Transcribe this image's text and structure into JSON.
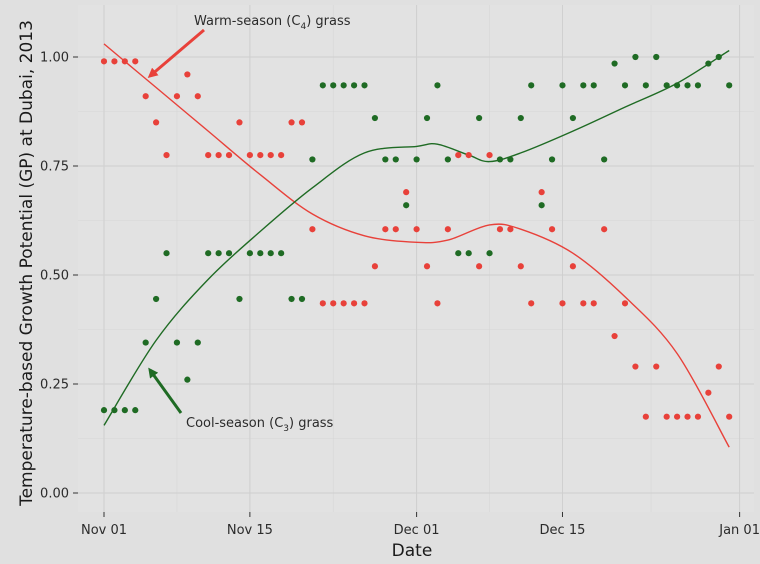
{
  "chart_data": {
    "type": "scatter",
    "xlabel": "Date",
    "ylabel": "Temperature-based Growth Potential (GP) at Dubai, 2013",
    "x_ticks": [
      "Nov 01",
      "Nov 15",
      "Dec 01",
      "Dec 15",
      "Jan 01"
    ],
    "x_tick_days": [
      0,
      14,
      30,
      44,
      61
    ],
    "y_ticks": [
      "0.00",
      "0.25",
      "0.50",
      "0.75",
      "1.00"
    ],
    "y_tick_values": [
      0,
      0.25,
      0.5,
      0.75,
      1.0
    ],
    "xlim_days": [
      -2.5,
      63
    ],
    "ylim": [
      -0.05,
      1.07
    ],
    "grid": true,
    "legend": "none",
    "series": [
      {
        "color": "#e8413a",
        "points": [
          [
            0,
            0.99
          ],
          [
            1,
            0.99
          ],
          [
            2,
            0.99
          ],
          [
            3,
            0.99
          ],
          [
            4,
            0.91
          ],
          [
            5,
            0.85
          ],
          [
            6,
            0.775
          ],
          [
            7,
            0.91
          ],
          [
            8,
            0.96
          ],
          [
            9,
            0.91
          ],
          [
            10,
            0.775
          ],
          [
            11,
            0.775
          ],
          [
            12,
            0.775
          ],
          [
            13,
            0.85
          ],
          [
            14,
            0.775
          ],
          [
            15,
            0.775
          ],
          [
            16,
            0.775
          ],
          [
            17,
            0.775
          ],
          [
            18,
            0.85
          ],
          [
            19,
            0.85
          ],
          [
            20,
            0.605
          ],
          [
            21,
            0.435
          ],
          [
            22,
            0.435
          ],
          [
            23,
            0.435
          ],
          [
            24,
            0.435
          ],
          [
            25,
            0.435
          ],
          [
            26,
            0.52
          ],
          [
            27,
            0.605
          ],
          [
            28,
            0.605
          ],
          [
            29,
            0.69
          ],
          [
            30,
            0.605
          ],
          [
            31,
            0.52
          ],
          [
            32,
            0.435
          ],
          [
            33,
            0.605
          ],
          [
            34,
            0.775
          ],
          [
            35,
            0.775
          ],
          [
            36,
            0.52
          ],
          [
            37,
            0.775
          ],
          [
            38,
            0.605
          ],
          [
            39,
            0.605
          ],
          [
            40,
            0.52
          ],
          [
            41,
            0.435
          ],
          [
            42,
            0.69
          ],
          [
            43,
            0.605
          ],
          [
            44,
            0.435
          ],
          [
            45,
            0.52
          ],
          [
            46,
            0.435
          ],
          [
            47,
            0.435
          ],
          [
            48,
            0.605
          ],
          [
            49,
            0.36
          ],
          [
            50,
            0.435
          ],
          [
            51,
            0.29
          ],
          [
            52,
            0.175
          ],
          [
            53,
            0.29
          ],
          [
            54,
            0.175
          ],
          [
            55,
            0.175
          ],
          [
            56,
            0.175
          ],
          [
            57,
            0.175
          ],
          [
            58,
            0.23
          ],
          [
            59,
            0.29
          ],
          [
            60,
            0.175
          ]
        ],
        "fit": [
          [
            0,
            1.03
          ],
          [
            5,
            0.93
          ],
          [
            10,
            0.83
          ],
          [
            15,
            0.73
          ],
          [
            20,
            0.64
          ],
          [
            25,
            0.59
          ],
          [
            30,
            0.575
          ],
          [
            33,
            0.58
          ],
          [
            37,
            0.615
          ],
          [
            40,
            0.605
          ],
          [
            45,
            0.55
          ],
          [
            50,
            0.45
          ],
          [
            55,
            0.32
          ],
          [
            60,
            0.105
          ]
        ]
      },
      {
        "color": "#1f6b24",
        "points": [
          [
            0,
            0.19
          ],
          [
            1,
            0.19
          ],
          [
            2,
            0.19
          ],
          [
            3,
            0.19
          ],
          [
            4,
            0.345
          ],
          [
            5,
            0.445
          ],
          [
            6,
            0.55
          ],
          [
            7,
            0.345
          ],
          [
            8,
            0.26
          ],
          [
            9,
            0.345
          ],
          [
            10,
            0.55
          ],
          [
            11,
            0.55
          ],
          [
            12,
            0.55
          ],
          [
            13,
            0.445
          ],
          [
            14,
            0.55
          ],
          [
            15,
            0.55
          ],
          [
            16,
            0.55
          ],
          [
            17,
            0.55
          ],
          [
            18,
            0.445
          ],
          [
            19,
            0.445
          ],
          [
            20,
            0.765
          ],
          [
            21,
            0.935
          ],
          [
            22,
            0.935
          ],
          [
            23,
            0.935
          ],
          [
            24,
            0.935
          ],
          [
            25,
            0.935
          ],
          [
            26,
            0.86
          ],
          [
            27,
            0.765
          ],
          [
            28,
            0.765
          ],
          [
            29,
            0.66
          ],
          [
            30,
            0.765
          ],
          [
            31,
            0.86
          ],
          [
            32,
            0.935
          ],
          [
            33,
            0.765
          ],
          [
            34,
            0.55
          ],
          [
            35,
            0.55
          ],
          [
            36,
            0.86
          ],
          [
            37,
            0.55
          ],
          [
            38,
            0.765
          ],
          [
            39,
            0.765
          ],
          [
            40,
            0.86
          ],
          [
            41,
            0.935
          ],
          [
            42,
            0.66
          ],
          [
            43,
            0.765
          ],
          [
            44,
            0.935
          ],
          [
            45,
            0.86
          ],
          [
            46,
            0.935
          ],
          [
            47,
            0.935
          ],
          [
            48,
            0.765
          ],
          [
            49,
            0.985
          ],
          [
            50,
            0.935
          ],
          [
            51,
            1.0
          ],
          [
            52,
            0.935
          ],
          [
            53,
            1.0
          ],
          [
            54,
            0.935
          ],
          [
            55,
            0.935
          ],
          [
            56,
            0.935
          ],
          [
            57,
            0.935
          ],
          [
            58,
            0.985
          ],
          [
            59,
            1.0
          ],
          [
            60,
            0.935
          ]
        ],
        "fit": [
          [
            0,
            0.155
          ],
          [
            5,
            0.35
          ],
          [
            10,
            0.49
          ],
          [
            15,
            0.6
          ],
          [
            20,
            0.7
          ],
          [
            25,
            0.78
          ],
          [
            30,
            0.795
          ],
          [
            32,
            0.8
          ],
          [
            35,
            0.775
          ],
          [
            37,
            0.76
          ],
          [
            40,
            0.78
          ],
          [
            45,
            0.83
          ],
          [
            50,
            0.885
          ],
          [
            55,
            0.94
          ],
          [
            60,
            1.015
          ]
        ]
      }
    ],
    "annotations": [
      {
        "text_main": "Warm-season (C",
        "text_sub": "4",
        "text_tail": ") grass",
        "color": "#e8413a",
        "arrow_to": [
          4,
          0.955
        ]
      },
      {
        "text_main": "Cool-season (C",
        "text_sub": "3",
        "text_tail": ") grass",
        "color": "#1f6b24",
        "arrow_to": [
          4,
          0.29
        ]
      }
    ]
  }
}
